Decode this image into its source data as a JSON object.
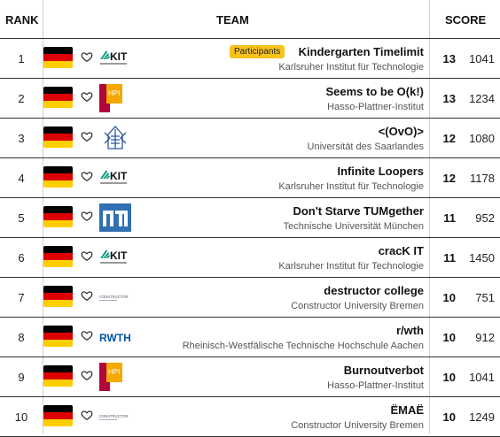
{
  "header": {
    "rank": "RANK",
    "team": "TEAM",
    "score": "SCORE"
  },
  "colors": {
    "flag_black": "#000000",
    "flag_red": "#dd0000",
    "flag_gold": "#ffce00",
    "badge": "#f7c21a",
    "kit_green": "#009682",
    "hpi_red": "#b1063a",
    "hpi_orange": "#f6a800",
    "tum_blue": "#3070b3",
    "rwth_blue": "#00549f"
  },
  "rows": [
    {
      "rank": "1",
      "team": "Kindergarten Timelimit",
      "university": "Karlsruher Institut für Technologie",
      "solved": "13",
      "score": "1041",
      "logo": "kit-logo",
      "badge": "Participants"
    },
    {
      "rank": "2",
      "team": "Seems to be O(k!)",
      "university": "Hasso-Plattner-Institut",
      "solved": "13",
      "score": "1234",
      "logo": "hpi-logo"
    },
    {
      "rank": "3",
      "team": "<(OvO)>",
      "university": "Universität des Saarlandes",
      "solved": "12",
      "score": "1080",
      "logo": "saarland-logo"
    },
    {
      "rank": "4",
      "team": "Infinite Loopers",
      "university": "Karlsruher Institut für Technologie",
      "solved": "12",
      "score": "1178",
      "logo": "kit-logo"
    },
    {
      "rank": "5",
      "team": "Don't Starve TUMgether",
      "university": "Technische Universität München",
      "solved": "11",
      "score": "952",
      "logo": "tum-logo"
    },
    {
      "rank": "6",
      "team": "cracK IT",
      "university": "Karlsruher Institut für Technologie",
      "solved": "11",
      "score": "1450",
      "logo": "kit-logo"
    },
    {
      "rank": "7",
      "team": "destructor college",
      "university": "Constructor University Bremen",
      "solved": "10",
      "score": "751",
      "logo": "constructor-logo"
    },
    {
      "rank": "8",
      "team": "r/wth",
      "university": "Rheinisch-Westfälische Technische Hochschule Aachen",
      "solved": "10",
      "score": "912",
      "logo": "rwth-logo"
    },
    {
      "rank": "9",
      "team": "Burnoutverbot",
      "university": "Hasso-Plattner-Institut",
      "solved": "10",
      "score": "1041",
      "logo": "hpi-logo"
    },
    {
      "rank": "10",
      "team": "ËMAË",
      "university": "Constructor University Bremen",
      "solved": "10",
      "score": "1249",
      "logo": "constructor-logo"
    }
  ],
  "logo_text": {
    "kit": "KIT",
    "hpi": "HPI",
    "rwth": "RWTH",
    "constructor": "CONSTRUCTOR"
  }
}
